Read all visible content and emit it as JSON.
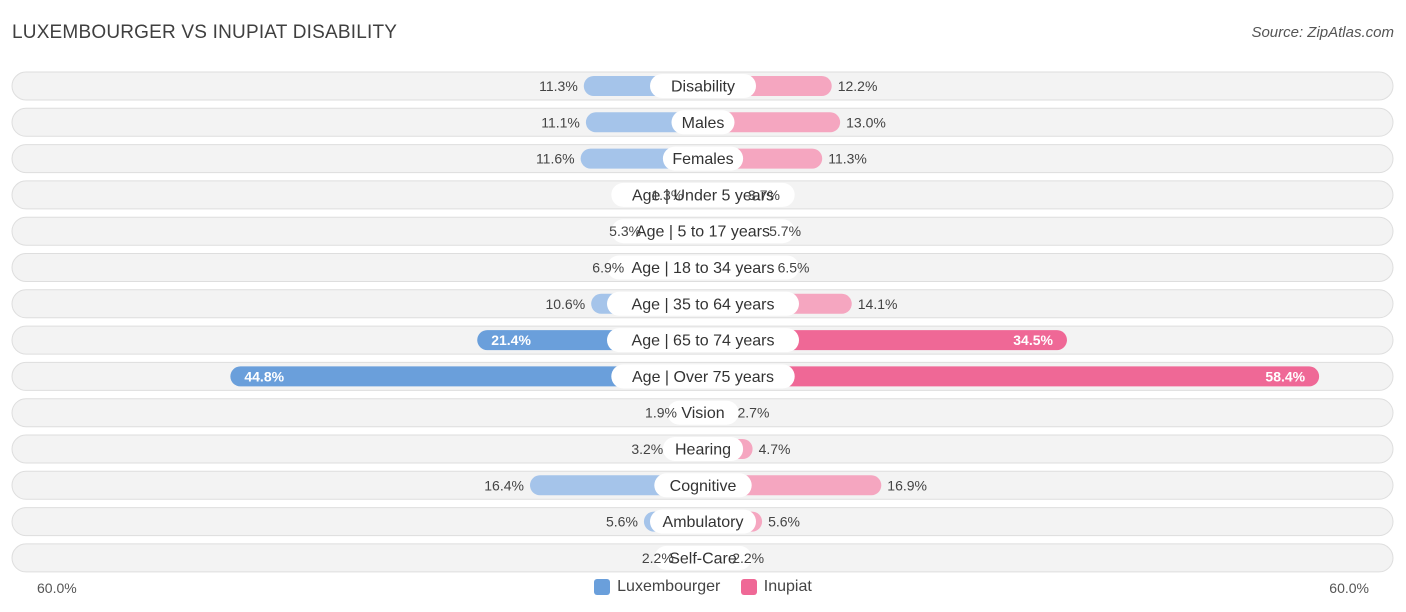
{
  "title": "LUXEMBOURGER VS INUPIAT DISABILITY",
  "source": "Source: ZipAtlas.com",
  "colors": {
    "luxembourger": "#6a9fdb",
    "luxembourger_light": "#a5c4ea",
    "inupiat": "#ef6896",
    "inupiat_light": "#f5a6c0"
  },
  "axis": {
    "min_label": "60.0%",
    "max_label": "60.0%"
  },
  "chart_data": {
    "type": "bar",
    "orientation": "horizontal-diverging",
    "xlim": [
      0,
      60
    ],
    "categories": [
      "Disability",
      "Males",
      "Females",
      "Age | Under 5 years",
      "Age | 5 to 17 years",
      "Age | 18 to 34 years",
      "Age | 35 to 64 years",
      "Age | 65 to 74 years",
      "Age | Over 75 years",
      "Vision",
      "Hearing",
      "Cognitive",
      "Ambulatory",
      "Self-Care"
    ],
    "series": [
      {
        "name": "Luxembourger",
        "values": [
          11.3,
          11.1,
          11.6,
          1.3,
          5.3,
          6.9,
          10.6,
          21.4,
          44.8,
          1.9,
          3.2,
          16.4,
          5.6,
          2.2
        ],
        "labels": [
          "11.3%",
          "11.1%",
          "11.6%",
          "1.3%",
          "5.3%",
          "6.9%",
          "10.6%",
          "21.4%",
          "44.8%",
          "1.9%",
          "3.2%",
          "16.4%",
          "5.6%",
          "2.2%"
        ]
      },
      {
        "name": "Inupiat",
        "values": [
          12.2,
          13.0,
          11.3,
          3.7,
          5.7,
          6.5,
          14.1,
          34.5,
          58.4,
          2.7,
          4.7,
          16.9,
          5.6,
          2.2
        ],
        "labels": [
          "12.2%",
          "13.0%",
          "11.3%",
          "3.7%",
          "5.7%",
          "6.5%",
          "14.1%",
          "34.5%",
          "58.4%",
          "2.7%",
          "4.7%",
          "16.9%",
          "5.6%",
          "2.2%"
        ]
      }
    ],
    "legend_position": "bottom-center"
  }
}
